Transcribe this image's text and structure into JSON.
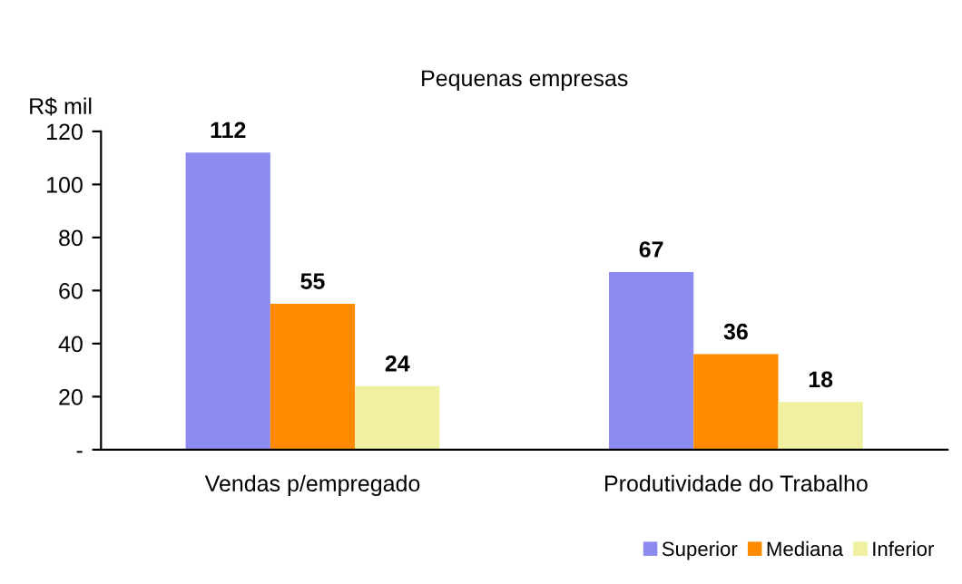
{
  "chart_data": {
    "type": "bar",
    "title": "Pequenas empresas",
    "ylabel": "R$ mil",
    "categories": [
      "Vendas p/empregado",
      "Produtividade do Trabalho"
    ],
    "series": [
      {
        "name": "Superior",
        "color": "#8c8cf0",
        "values": [
          112,
          67
        ]
      },
      {
        "name": "Mediana",
        "color": "#ff8c00",
        "values": [
          55,
          36
        ]
      },
      {
        "name": "Inferior",
        "color": "#f0f0a0",
        "values": [
          24,
          18
        ]
      }
    ],
    "ylim": [
      0,
      120
    ],
    "yticks": [
      {
        "value": 0,
        "label": "-"
      },
      20,
      40,
      60,
      80,
      100,
      120
    ],
    "data_labels": true,
    "grid": false,
    "legend": "bottom right"
  }
}
